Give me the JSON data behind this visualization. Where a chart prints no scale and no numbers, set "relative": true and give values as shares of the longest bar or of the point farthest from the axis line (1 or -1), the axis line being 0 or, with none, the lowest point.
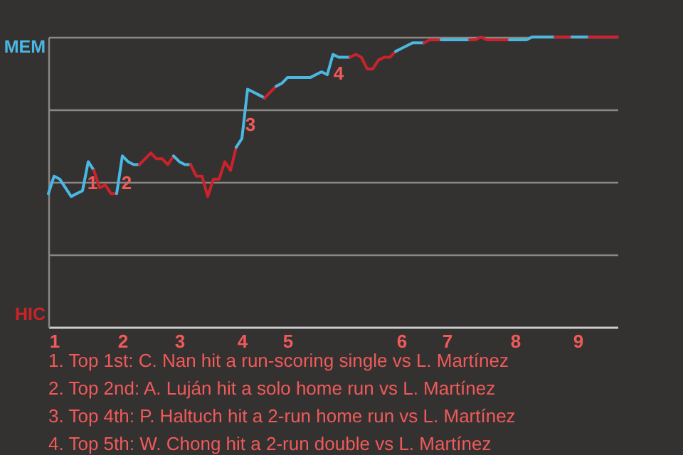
{
  "chart_data": {
    "type": "line",
    "relative": true,
    "grid": "y",
    "categories": [
      null,
      "1",
      null,
      null,
      null,
      null,
      null,
      null,
      null,
      null,
      null,
      null,
      null,
      "2",
      null,
      null,
      null,
      null,
      null,
      null,
      null,
      null,
      null,
      "3",
      null,
      null,
      null,
      null,
      null,
      null,
      null,
      null,
      null,
      null,
      "4",
      null,
      null,
      null,
      null,
      null,
      null,
      null,
      "5",
      null,
      null,
      null,
      null,
      null,
      null,
      null,
      null,
      null,
      null,
      null,
      null,
      null,
      null,
      null,
      null,
      null,
      null,
      null,
      "6",
      null,
      null,
      null,
      null,
      null,
      null,
      null,
      "7",
      null,
      null,
      null,
      null,
      null,
      null,
      null,
      null,
      null,
      null,
      null,
      "8",
      null,
      null,
      null,
      null,
      null,
      null,
      null,
      null,
      null,
      null,
      "9",
      null,
      null,
      null,
      null,
      null,
      null,
      null
    ],
    "series": [
      {
        "name": "MEM",
        "color": "#4ab8e6",
        "values": [
          0.46,
          0.52,
          0.51,
          0.48,
          0.45,
          0.46,
          0.47,
          0.57,
          0.54,
          null,
          null,
          null,
          null,
          null,
          null,
          null,
          null,
          null,
          null,
          null,
          null,
          null,
          null,
          null,
          null,
          null,
          null,
          null,
          null,
          null,
          null,
          null,
          null,
          null,
          null,
          null,
          null,
          null,
          null,
          null,
          null,
          null,
          null,
          null,
          null,
          null,
          null,
          null,
          null,
          null,
          null,
          null,
          null,
          null,
          null,
          null,
          null,
          null,
          null,
          null,
          null,
          null,
          null,
          null,
          null,
          null,
          null,
          null,
          null,
          null,
          null,
          null,
          null,
          null,
          null,
          null,
          null,
          null,
          null,
          null,
          null,
          null,
          null,
          null,
          null,
          null,
          null,
          null,
          null,
          null,
          null,
          null,
          null,
          null,
          null,
          null,
          null,
          null,
          null,
          null,
          null
        ]
      },
      {
        "name": "HIC",
        "color": "#cc2229",
        "values": [
          null,
          null,
          null,
          null,
          null,
          null,
          null,
          null,
          0.54,
          0.48,
          0.49,
          0.46,
          0.46,
          null,
          null,
          null,
          null,
          null,
          null,
          null,
          null,
          null,
          null,
          null,
          null,
          null,
          null,
          null,
          null,
          null,
          null,
          null,
          null,
          null,
          null,
          null,
          null,
          null,
          null,
          null,
          null,
          null,
          null,
          null,
          null,
          null,
          null,
          null,
          null,
          null,
          null,
          null,
          null,
          null,
          null,
          null,
          null,
          null,
          null,
          null,
          null,
          null,
          null,
          null,
          null,
          null,
          null,
          null,
          null,
          null,
          null,
          null,
          null,
          null,
          null,
          null,
          null,
          null,
          null,
          null,
          null,
          null,
          null,
          null,
          null,
          null,
          null,
          null,
          null,
          null,
          null,
          null,
          null,
          null,
          null,
          null,
          null,
          null,
          null,
          null,
          null
        ]
      },
      {
        "color": "#4ab8e5",
        "values": [
          null,
          null,
          null,
          null,
          null,
          null,
          null,
          null,
          null,
          null,
          null,
          null,
          0.46,
          0.59,
          0.57,
          0.56,
          0.56,
          null,
          null,
          null,
          null,
          null,
          null,
          null,
          null,
          null,
          null,
          null,
          null,
          null,
          null,
          null,
          null,
          null,
          null,
          null,
          null,
          null,
          null,
          null,
          null,
          null,
          null,
          null,
          null,
          null,
          null,
          null,
          null,
          null,
          null,
          null,
          null,
          null,
          null,
          null,
          null,
          null,
          null,
          null,
          null,
          null,
          null,
          null,
          null,
          null,
          null,
          null,
          null,
          null,
          null,
          null,
          null,
          null,
          null,
          null,
          null,
          null,
          null,
          null,
          null,
          null,
          null,
          null,
          null,
          null,
          null,
          null,
          null,
          null,
          null,
          null,
          null,
          null,
          null,
          null,
          null,
          null,
          null,
          null,
          null
        ]
      },
      {
        "color": "#cc222a",
        "values": [
          null,
          null,
          null,
          null,
          null,
          null,
          null,
          null,
          null,
          null,
          null,
          null,
          null,
          null,
          null,
          null,
          0.56,
          0.58,
          0.6,
          0.58,
          0.58,
          0.56,
          0.59,
          null,
          null,
          null,
          null,
          null,
          null,
          null,
          null,
          null,
          null,
          null,
          null,
          null,
          null,
          null,
          null,
          null,
          null,
          null,
          null,
          null,
          null,
          null,
          null,
          null,
          null,
          null,
          null,
          null,
          null,
          null,
          null,
          null,
          null,
          null,
          null,
          null,
          null,
          null,
          null,
          null,
          null,
          null,
          null,
          null,
          null,
          null,
          null,
          null,
          null,
          null,
          null,
          null,
          null,
          null,
          null,
          null,
          null,
          null,
          null,
          null,
          null,
          null,
          null,
          null,
          null,
          null,
          null,
          null,
          null,
          null,
          null,
          null,
          null,
          null,
          null,
          null,
          null
        ]
      },
      {
        "color": "#4ab8e4",
        "values": [
          null,
          null,
          null,
          null,
          null,
          null,
          null,
          null,
          null,
          null,
          null,
          null,
          null,
          null,
          null,
          null,
          null,
          null,
          null,
          null,
          null,
          null,
          0.59,
          0.57,
          0.56,
          0.56,
          null,
          null,
          null,
          null,
          null,
          null,
          null,
          null,
          null,
          null,
          null,
          null,
          null,
          null,
          null,
          null,
          null,
          null,
          null,
          null,
          null,
          null,
          null,
          null,
          null,
          null,
          null,
          null,
          null,
          null,
          null,
          null,
          null,
          null,
          null,
          null,
          null,
          null,
          null,
          null,
          null,
          null,
          null,
          null,
          null,
          null,
          null,
          null,
          null,
          null,
          null,
          null,
          null,
          null,
          null,
          null,
          null,
          null,
          null,
          null,
          null,
          null,
          null,
          null,
          null,
          null,
          null,
          null,
          null,
          null,
          null,
          null,
          null,
          null,
          null
        ]
      },
      {
        "color": "#cc222b",
        "values": [
          null,
          null,
          null,
          null,
          null,
          null,
          null,
          null,
          null,
          null,
          null,
          null,
          null,
          null,
          null,
          null,
          null,
          null,
          null,
          null,
          null,
          null,
          null,
          null,
          null,
          0.56,
          0.52,
          0.52,
          0.45,
          0.51,
          0.51,
          0.57,
          0.54,
          0.62,
          null,
          null,
          null,
          null,
          null,
          null,
          null,
          null,
          null,
          null,
          null,
          null,
          null,
          null,
          null,
          null,
          null,
          null,
          null,
          null,
          null,
          null,
          null,
          null,
          null,
          null,
          null,
          null,
          null,
          null,
          null,
          null,
          null,
          null,
          null,
          null,
          null,
          null,
          null,
          null,
          null,
          null,
          null,
          null,
          null,
          null,
          null,
          null,
          null,
          null,
          null,
          null,
          null,
          null,
          null,
          null,
          null,
          null,
          null,
          null,
          null,
          null,
          null,
          null,
          null,
          null,
          null
        ]
      },
      {
        "color": "#4ab8e3",
        "values": [
          null,
          null,
          null,
          null,
          null,
          null,
          null,
          null,
          null,
          null,
          null,
          null,
          null,
          null,
          null,
          null,
          null,
          null,
          null,
          null,
          null,
          null,
          null,
          null,
          null,
          null,
          null,
          null,
          null,
          null,
          null,
          null,
          null,
          0.62,
          0.65,
          0.82,
          0.81,
          0.8,
          0.79,
          null,
          null,
          null,
          null,
          null,
          null,
          null,
          null,
          null,
          null,
          null,
          null,
          null,
          null,
          null,
          null,
          null,
          null,
          null,
          null,
          null,
          null,
          null,
          null,
          null,
          null,
          null,
          null,
          null,
          null,
          null,
          null,
          null,
          null,
          null,
          null,
          null,
          null,
          null,
          null,
          null,
          null,
          null,
          null,
          null,
          null,
          null,
          null,
          null,
          null,
          null,
          null,
          null,
          null,
          null,
          null,
          null,
          null,
          null,
          null,
          null,
          null
        ]
      },
      {
        "color": "#cc222c",
        "values": [
          null,
          null,
          null,
          null,
          null,
          null,
          null,
          null,
          null,
          null,
          null,
          null,
          null,
          null,
          null,
          null,
          null,
          null,
          null,
          null,
          null,
          null,
          null,
          null,
          null,
          null,
          null,
          null,
          null,
          null,
          null,
          null,
          null,
          null,
          null,
          null,
          null,
          null,
          0.79,
          0.81,
          0.83,
          null,
          null,
          null,
          null,
          null,
          null,
          null,
          null,
          null,
          null,
          null,
          null,
          null,
          null,
          null,
          null,
          null,
          null,
          null,
          null,
          null,
          null,
          null,
          null,
          null,
          null,
          null,
          null,
          null,
          null,
          null,
          null,
          null,
          null,
          null,
          null,
          null,
          null,
          null,
          null,
          null,
          null,
          null,
          null,
          null,
          null,
          null,
          null,
          null,
          null,
          null,
          null,
          null,
          null,
          null,
          null,
          null,
          null,
          null,
          null
        ]
      },
      {
        "color": "#4ab8e2",
        "values": [
          null,
          null,
          null,
          null,
          null,
          null,
          null,
          null,
          null,
          null,
          null,
          null,
          null,
          null,
          null,
          null,
          null,
          null,
          null,
          null,
          null,
          null,
          null,
          null,
          null,
          null,
          null,
          null,
          null,
          null,
          null,
          null,
          null,
          null,
          null,
          null,
          null,
          null,
          null,
          null,
          0.83,
          0.84,
          0.86,
          0.86,
          0.86,
          0.86,
          0.86,
          0.87,
          0.88,
          0.87,
          0.94,
          0.93,
          0.93,
          0.93,
          null,
          null,
          null,
          null,
          null,
          null,
          null,
          null,
          null,
          null,
          null,
          null,
          null,
          null,
          null,
          null,
          null,
          null,
          null,
          null,
          null,
          null,
          null,
          null,
          null,
          null,
          null,
          null,
          null,
          null,
          null,
          null,
          null,
          null,
          null,
          null,
          null,
          null,
          null,
          null,
          null,
          null,
          null,
          null,
          null,
          null,
          null
        ]
      },
      {
        "color": "#cc222d",
        "values": [
          null,
          null,
          null,
          null,
          null,
          null,
          null,
          null,
          null,
          null,
          null,
          null,
          null,
          null,
          null,
          null,
          null,
          null,
          null,
          null,
          null,
          null,
          null,
          null,
          null,
          null,
          null,
          null,
          null,
          null,
          null,
          null,
          null,
          null,
          null,
          null,
          null,
          null,
          null,
          null,
          null,
          null,
          null,
          null,
          null,
          null,
          null,
          null,
          null,
          null,
          null,
          null,
          null,
          0.93,
          0.94,
          0.93,
          0.89,
          0.89,
          0.92,
          0.93,
          0.93,
          0.95,
          null,
          null,
          null,
          null,
          null,
          null,
          null,
          null,
          null,
          null,
          null,
          null,
          null,
          null,
          null,
          null,
          null,
          null,
          null,
          null,
          null,
          null,
          null,
          null,
          null,
          null,
          null,
          null,
          null,
          null,
          null,
          null,
          null,
          null,
          null,
          null,
          null,
          null,
          null
        ]
      },
      {
        "color": "#4ab8e1",
        "values": [
          null,
          null,
          null,
          null,
          null,
          null,
          null,
          null,
          null,
          null,
          null,
          null,
          null,
          null,
          null,
          null,
          null,
          null,
          null,
          null,
          null,
          null,
          null,
          null,
          null,
          null,
          null,
          null,
          null,
          null,
          null,
          null,
          null,
          null,
          null,
          null,
          null,
          null,
          null,
          null,
          null,
          null,
          null,
          null,
          null,
          null,
          null,
          null,
          null,
          null,
          null,
          null,
          null,
          null,
          null,
          null,
          null,
          null,
          null,
          null,
          null,
          0.95,
          0.96,
          0.97,
          0.98,
          0.98,
          0.98,
          null,
          null,
          null,
          null,
          null,
          null,
          null,
          null,
          null,
          null,
          null,
          null,
          null,
          null,
          null,
          null,
          null,
          null,
          null,
          null,
          null,
          null,
          null,
          null,
          null,
          null,
          null,
          null,
          null,
          null,
          null,
          null,
          null,
          null
        ]
      },
      {
        "color": "#cc222e",
        "values": [
          null,
          null,
          null,
          null,
          null,
          null,
          null,
          null,
          null,
          null,
          null,
          null,
          null,
          null,
          null,
          null,
          null,
          null,
          null,
          null,
          null,
          null,
          null,
          null,
          null,
          null,
          null,
          null,
          null,
          null,
          null,
          null,
          null,
          null,
          null,
          null,
          null,
          null,
          null,
          null,
          null,
          null,
          null,
          null,
          null,
          null,
          null,
          null,
          null,
          null,
          null,
          null,
          null,
          null,
          null,
          null,
          null,
          null,
          null,
          null,
          null,
          null,
          null,
          null,
          null,
          null,
          0.98,
          0.99,
          0.99,
          0.99,
          null,
          null,
          null,
          null,
          null,
          null,
          null,
          null,
          null,
          null,
          null,
          null,
          null,
          null,
          null,
          null,
          null,
          null,
          null,
          null,
          null,
          null,
          null,
          null,
          null,
          null,
          null,
          null,
          null,
          null,
          null
        ]
      },
      {
        "color": "#4ab8e0",
        "values": [
          null,
          null,
          null,
          null,
          null,
          null,
          null,
          null,
          null,
          null,
          null,
          null,
          null,
          null,
          null,
          null,
          null,
          null,
          null,
          null,
          null,
          null,
          null,
          null,
          null,
          null,
          null,
          null,
          null,
          null,
          null,
          null,
          null,
          null,
          null,
          null,
          null,
          null,
          null,
          null,
          null,
          null,
          null,
          null,
          null,
          null,
          null,
          null,
          null,
          null,
          null,
          null,
          null,
          null,
          null,
          null,
          null,
          null,
          null,
          null,
          null,
          null,
          null,
          null,
          null,
          null,
          null,
          null,
          null,
          0.99,
          0.99,
          0.99,
          0.99,
          0.99,
          0.99,
          null,
          null,
          null,
          null,
          null,
          null,
          null,
          null,
          null,
          null,
          null,
          null,
          null,
          null,
          null,
          null,
          null,
          null,
          null,
          null,
          null,
          null,
          null,
          null,
          null,
          null
        ]
      },
      {
        "color": "#cc222f",
        "values": [
          null,
          null,
          null,
          null,
          null,
          null,
          null,
          null,
          null,
          null,
          null,
          null,
          null,
          null,
          null,
          null,
          null,
          null,
          null,
          null,
          null,
          null,
          null,
          null,
          null,
          null,
          null,
          null,
          null,
          null,
          null,
          null,
          null,
          null,
          null,
          null,
          null,
          null,
          null,
          null,
          null,
          null,
          null,
          null,
          null,
          null,
          null,
          null,
          null,
          null,
          null,
          null,
          null,
          null,
          null,
          null,
          null,
          null,
          null,
          null,
          null,
          null,
          null,
          null,
          null,
          null,
          null,
          null,
          null,
          null,
          null,
          null,
          null,
          null,
          0.99,
          0.99,
          1.0,
          0.99,
          0.99,
          0.99,
          0.99,
          0.99,
          null,
          null,
          null,
          null,
          null,
          null,
          null,
          null,
          null,
          null,
          null,
          null,
          null,
          null,
          null,
          null,
          null,
          null,
          null
        ]
      },
      {
        "color": "#4ab8df",
        "values": [
          null,
          null,
          null,
          null,
          null,
          null,
          null,
          null,
          null,
          null,
          null,
          null,
          null,
          null,
          null,
          null,
          null,
          null,
          null,
          null,
          null,
          null,
          null,
          null,
          null,
          null,
          null,
          null,
          null,
          null,
          null,
          null,
          null,
          null,
          null,
          null,
          null,
          null,
          null,
          null,
          null,
          null,
          null,
          null,
          null,
          null,
          null,
          null,
          null,
          null,
          null,
          null,
          null,
          null,
          null,
          null,
          null,
          null,
          null,
          null,
          null,
          null,
          null,
          null,
          null,
          null,
          null,
          null,
          null,
          null,
          null,
          null,
          null,
          null,
          null,
          null,
          null,
          null,
          null,
          null,
          null,
          0.99,
          0.99,
          0.99,
          0.99,
          1.0,
          1.0,
          1.0,
          1.0,
          1.0,
          null,
          null,
          null,
          null,
          null,
          null,
          null,
          null,
          null,
          null,
          null
        ]
      },
      {
        "color": "#cc2230",
        "values": [
          null,
          null,
          null,
          null,
          null,
          null,
          null,
          null,
          null,
          null,
          null,
          null,
          null,
          null,
          null,
          null,
          null,
          null,
          null,
          null,
          null,
          null,
          null,
          null,
          null,
          null,
          null,
          null,
          null,
          null,
          null,
          null,
          null,
          null,
          null,
          null,
          null,
          null,
          null,
          null,
          null,
          null,
          null,
          null,
          null,
          null,
          null,
          null,
          null,
          null,
          null,
          null,
          null,
          null,
          null,
          null,
          null,
          null,
          null,
          null,
          null,
          null,
          null,
          null,
          null,
          null,
          null,
          null,
          null,
          null,
          null,
          null,
          null,
          null,
          null,
          null,
          null,
          null,
          null,
          null,
          null,
          null,
          null,
          null,
          null,
          null,
          null,
          null,
          null,
          1.0,
          1.0,
          1.0,
          1.0,
          null,
          null,
          null,
          null,
          null,
          null,
          null,
          null
        ]
      },
      {
        "color": "#4ab8de",
        "values": [
          null,
          null,
          null,
          null,
          null,
          null,
          null,
          null,
          null,
          null,
          null,
          null,
          null,
          null,
          null,
          null,
          null,
          null,
          null,
          null,
          null,
          null,
          null,
          null,
          null,
          null,
          null,
          null,
          null,
          null,
          null,
          null,
          null,
          null,
          null,
          null,
          null,
          null,
          null,
          null,
          null,
          null,
          null,
          null,
          null,
          null,
          null,
          null,
          null,
          null,
          null,
          null,
          null,
          null,
          null,
          null,
          null,
          null,
          null,
          null,
          null,
          null,
          null,
          null,
          null,
          null,
          null,
          null,
          null,
          null,
          null,
          null,
          null,
          null,
          null,
          null,
          null,
          null,
          null,
          null,
          null,
          null,
          null,
          null,
          null,
          null,
          null,
          null,
          null,
          null,
          null,
          null,
          1.0,
          1.0,
          1.0,
          1.0,
          null,
          null,
          null,
          null,
          null
        ]
      },
      {
        "color": "#cc2231",
        "values": [
          null,
          null,
          null,
          null,
          null,
          null,
          null,
          null,
          null,
          null,
          null,
          null,
          null,
          null,
          null,
          null,
          null,
          null,
          null,
          null,
          null,
          null,
          null,
          null,
          null,
          null,
          null,
          null,
          null,
          null,
          null,
          null,
          null,
          null,
          null,
          null,
          null,
          null,
          null,
          null,
          null,
          null,
          null,
          null,
          null,
          null,
          null,
          null,
          null,
          null,
          null,
          null,
          null,
          null,
          null,
          null,
          null,
          null,
          null,
          null,
          null,
          null,
          null,
          null,
          null,
          null,
          null,
          null,
          null,
          null,
          null,
          null,
          null,
          null,
          null,
          null,
          null,
          null,
          null,
          null,
          null,
          null,
          null,
          null,
          null,
          null,
          null,
          null,
          null,
          null,
          null,
          null,
          null,
          null,
          null,
          1.0,
          1.0,
          1.0,
          1.0,
          1.0,
          1.0
        ]
      }
    ],
    "annotations": [
      "1",
      "2",
      "3",
      "4",
      "1. Top 1st: C. Nan hit a run-scoring single vs L. Martínez",
      "2. Top 2nd: A. Luján hit a solo home run vs L. Martínez",
      "3. Top 4th: P. Haltuch hit a 2-run home run vs L. Martínez",
      "4. Top 5th: W. Chong hit a 2-run double vs L. Martínez"
    ]
  }
}
